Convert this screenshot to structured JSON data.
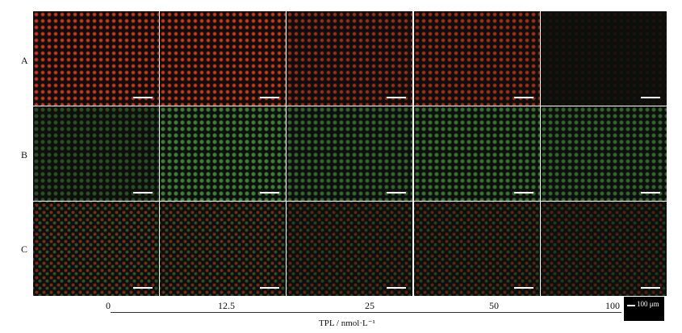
{
  "rows": [
    {
      "label": "A"
    },
    {
      "label": "B"
    },
    {
      "label": "C"
    }
  ],
  "columns": [
    "0",
    "12.5",
    "25",
    "50",
    "100"
  ],
  "axis_title": "TPL / nmol·L⁻¹",
  "scale_bar": "100 μm"
}
